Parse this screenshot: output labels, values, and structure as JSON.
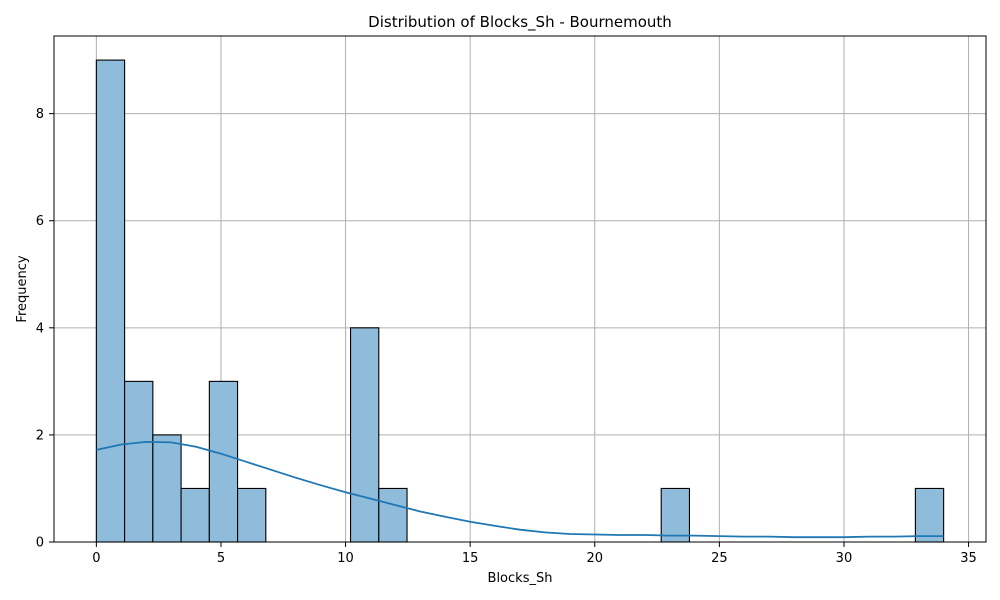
{
  "chart_data": {
    "type": "bar",
    "title": "Distribution of Blocks_Sh - Bournemouth",
    "xlabel": "Blocks_Sh",
    "ylabel": "Frequency",
    "xlim": [
      -1.7,
      35.7
    ],
    "ylim": [
      0,
      9.45
    ],
    "xticks": [
      0,
      5,
      10,
      15,
      20,
      25,
      30,
      35
    ],
    "yticks": [
      0,
      2,
      4,
      6,
      8
    ],
    "grid": true,
    "bin_edges": [
      0,
      1.1333,
      2.2667,
      3.4,
      4.5333,
      5.6667,
      6.8,
      7.9333,
      9.0667,
      10.2,
      11.3333,
      12.4667,
      13.6,
      14.7333,
      15.8667,
      17.0,
      18.1333,
      19.2667,
      20.4,
      21.5333,
      22.6667,
      23.8,
      24.9333,
      26.0667,
      27.2,
      28.3333,
      29.4667,
      30.6,
      31.7333,
      32.8667,
      34.0
    ],
    "counts": [
      9,
      3,
      2,
      1,
      3,
      1,
      0,
      0,
      0,
      4,
      1,
      0,
      0,
      0,
      0,
      0,
      0,
      0,
      0,
      0,
      1,
      0,
      0,
      0,
      0,
      0,
      0,
      0,
      0,
      1
    ],
    "kde": {
      "x": [
        0,
        1,
        2,
        3,
        4,
        5,
        6,
        7,
        8,
        9,
        10,
        11,
        12,
        13,
        14,
        15,
        16,
        17,
        18,
        19,
        20,
        21,
        22,
        23,
        24,
        25,
        26,
        27,
        28,
        29,
        30,
        31,
        32,
        33,
        34
      ],
      "y": [
        1.72,
        1.82,
        1.87,
        1.86,
        1.78,
        1.65,
        1.5,
        1.35,
        1.2,
        1.06,
        0.93,
        0.81,
        0.69,
        0.57,
        0.47,
        0.38,
        0.3,
        0.23,
        0.18,
        0.15,
        0.14,
        0.13,
        0.13,
        0.12,
        0.12,
        0.11,
        0.1,
        0.1,
        0.09,
        0.09,
        0.09,
        0.1,
        0.1,
        0.11,
        0.11
      ]
    },
    "colors": {
      "bar_fill": "#8fbcdb",
      "bar_edge": "#000000",
      "kde_line": "#1f77b4",
      "grid": "#b0b0b0"
    }
  }
}
